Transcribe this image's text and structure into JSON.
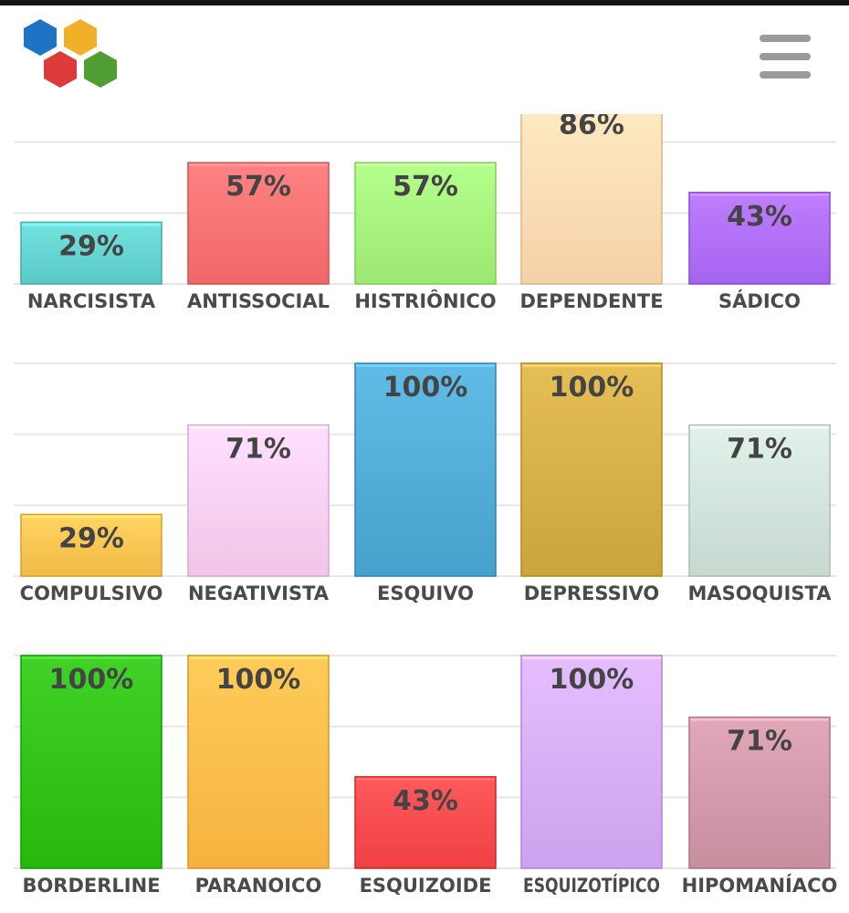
{
  "header": {
    "logo_icon": "hexagon-cluster-logo",
    "menu_icon": "hamburger-menu-icon",
    "logo_colors": [
      "#1f73c4",
      "#f0b02a",
      "#dd3a3a",
      "#4e9e32"
    ]
  },
  "chart_data": [
    {
      "type": "bar",
      "categories": [
        "NARCISISTA",
        "ANTISSOCIAL",
        "HISTRIÔNICO",
        "DEPENDENTE",
        "SÁDICO"
      ],
      "values": [
        29,
        57,
        57,
        86,
        43
      ],
      "value_labels": [
        "29%",
        "57%",
        "57%",
        "86%",
        "43%"
      ],
      "colors": [
        "#62d0cc",
        "#f87070",
        "#a3f07a",
        "#fdd9b0",
        "#ad6cf5"
      ],
      "ylim": [
        0,
        100
      ],
      "grid": true,
      "clipped_top": true
    },
    {
      "type": "bar",
      "categories": [
        "COMPULSIVO",
        "NEGATIVISTA",
        "ESQUIVO",
        "DEPRESSIVO",
        "MASOQUISTA"
      ],
      "values": [
        29,
        71,
        100,
        100,
        71
      ],
      "value_labels": [
        "29%",
        "71%",
        "100%",
        "100%",
        "71%"
      ],
      "colors": [
        "#f9c24e",
        "#f9cdf0",
        "#4ea9d4",
        "#d3ad43",
        "#cfe0d8"
      ],
      "ylim": [
        0,
        100
      ],
      "grid": true
    },
    {
      "type": "bar",
      "categories": [
        "BORDERLINE",
        "PARANOICO",
        "ESQUIZOIDE",
        "ESQUIZOTÍPICO",
        "HIPOMANÍACO"
      ],
      "values": [
        100,
        100,
        43,
        100,
        71
      ],
      "value_labels": [
        "100%",
        "100%",
        "43%",
        "100%",
        "71%"
      ],
      "colors": [
        "#2ec014",
        "#feba47",
        "#f7484a",
        "#d3abf6",
        "#cf96a8"
      ],
      "ylim": [
        0,
        100
      ],
      "grid": true
    }
  ]
}
